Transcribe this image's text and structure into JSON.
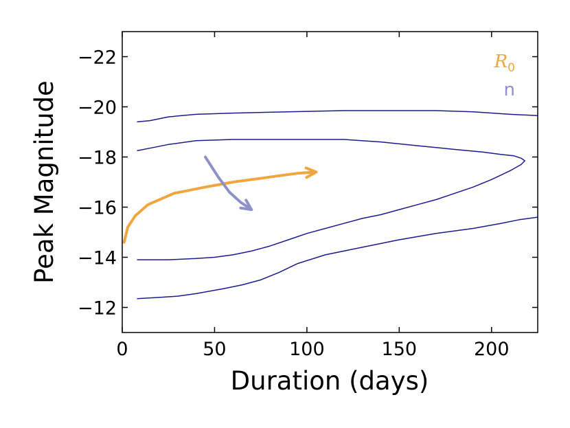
{
  "chart_data": {
    "type": "line",
    "xlabel": "Duration (days)",
    "ylabel": "Peak Magnitude",
    "xlim": [
      0,
      225
    ],
    "ylim": [
      -11,
      -23
    ],
    "y_inverted": true,
    "x_ticks": [
      0,
      50,
      100,
      150,
      200
    ],
    "x_tick_labels": [
      "0",
      "50",
      "100",
      "150",
      "200"
    ],
    "y_ticks": [
      -12,
      -14,
      -16,
      -18,
      -20,
      -22
    ],
    "y_tick_labels": [
      "−12",
      "−14",
      "−16",
      "−18",
      "−20",
      "−22"
    ],
    "grid": false,
    "colors": {
      "contour": "#1a1a8c",
      "r0": "#f0a640",
      "n": "#9090c8"
    },
    "contours": [
      {
        "name": "outer-contour-upper",
        "points": [
          [
            8,
            -19.4
          ],
          [
            15,
            -19.45
          ],
          [
            25,
            -19.6
          ],
          [
            40,
            -19.7
          ],
          [
            60,
            -19.75
          ],
          [
            90,
            -19.8
          ],
          [
            120,
            -19.85
          ],
          [
            150,
            -19.85
          ],
          [
            170,
            -19.85
          ],
          [
            190,
            -19.8
          ],
          [
            210,
            -19.7
          ],
          [
            225,
            -19.65
          ]
        ]
      },
      {
        "name": "outer-contour-lower",
        "points": [
          [
            8,
            -12.35
          ],
          [
            20,
            -12.4
          ],
          [
            30,
            -12.45
          ],
          [
            40,
            -12.55
          ],
          [
            55,
            -12.75
          ],
          [
            65,
            -12.9
          ],
          [
            75,
            -13.1
          ],
          [
            85,
            -13.4
          ],
          [
            95,
            -13.75
          ],
          [
            110,
            -14.1
          ],
          [
            130,
            -14.4
          ],
          [
            150,
            -14.7
          ],
          [
            170,
            -14.95
          ],
          [
            190,
            -15.15
          ],
          [
            205,
            -15.35
          ],
          [
            215,
            -15.5
          ],
          [
            225,
            -15.6
          ]
        ]
      },
      {
        "name": "inner-contour-loop",
        "points": [
          [
            8,
            -18.25
          ],
          [
            15,
            -18.35
          ],
          [
            25,
            -18.5
          ],
          [
            40,
            -18.65
          ],
          [
            60,
            -18.7
          ],
          [
            90,
            -18.7
          ],
          [
            120,
            -18.7
          ],
          [
            140,
            -18.6
          ],
          [
            160,
            -18.45
          ],
          [
            180,
            -18.3
          ],
          [
            195,
            -18.2
          ],
          [
            205,
            -18.1
          ],
          [
            212,
            -18.05
          ],
          [
            216,
            -17.95
          ],
          [
            218,
            -17.85
          ],
          [
            216,
            -17.7
          ],
          [
            210,
            -17.45
          ],
          [
            200,
            -17.1
          ],
          [
            190,
            -16.8
          ],
          [
            180,
            -16.55
          ],
          [
            170,
            -16.3
          ],
          [
            160,
            -16.1
          ],
          [
            150,
            -15.9
          ],
          [
            140,
            -15.7
          ],
          [
            130,
            -15.55
          ],
          [
            120,
            -15.35
          ],
          [
            110,
            -15.15
          ],
          [
            100,
            -14.95
          ],
          [
            90,
            -14.7
          ],
          [
            80,
            -14.45
          ],
          [
            70,
            -14.25
          ],
          [
            60,
            -14.1
          ],
          [
            50,
            -14.0
          ],
          [
            40,
            -13.95
          ],
          [
            25,
            -13.9
          ],
          [
            15,
            -13.9
          ],
          [
            8,
            -13.9
          ]
        ]
      }
    ],
    "series": [
      {
        "name": "R0",
        "label": "R",
        "label_sub": "0",
        "color_key": "r0",
        "points": [
          [
            1,
            -14.6
          ],
          [
            3,
            -15.2
          ],
          [
            7,
            -15.65
          ],
          [
            14,
            -16.1
          ],
          [
            28,
            -16.55
          ],
          [
            45,
            -16.8
          ],
          [
            60,
            -17.0
          ],
          [
            80,
            -17.2
          ],
          [
            95,
            -17.35
          ],
          [
            105,
            -17.4
          ]
        ],
        "arrow_end": true
      },
      {
        "name": "n",
        "label": "n",
        "color_key": "n",
        "points": [
          [
            45,
            -18
          ],
          [
            52,
            -17.2
          ],
          [
            58,
            -16.6
          ],
          [
            64,
            -16.2
          ],
          [
            70,
            -15.9
          ]
        ],
        "arrow_end": true
      }
    ],
    "legend_position": "top-right"
  }
}
